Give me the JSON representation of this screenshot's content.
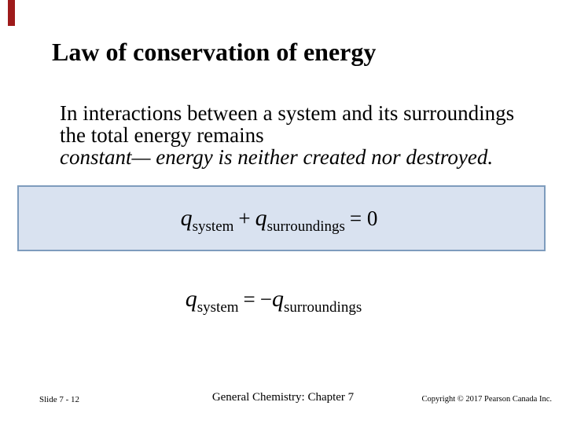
{
  "slide": {
    "title": "Law of conservation of energy",
    "paragraph": {
      "line1": "In interactions between a system and its surroundings",
      "line2": "the total energy remains",
      "line3": "constant— energy is neither created nor destroyed."
    },
    "equation_box": {
      "q1": "q",
      "sub1": "system",
      "plus": "+",
      "q2": "q",
      "sub2": "surroundings",
      "result": "= 0"
    },
    "equation_2": {
      "q1": "q",
      "sub1": "system",
      "equals": "=",
      "minus": "−",
      "q2": "q",
      "sub2": "surroundings"
    },
    "footer": {
      "slide_number": "Slide 7 - 12",
      "center": "General Chemistry: Chapter 7",
      "copyright": "Copyright © 2017 Pearson Canada Inc."
    },
    "colors": {
      "accent_bar": "#9e1b1b",
      "box_fill": "#d9e2f0",
      "box_border": "#7e9cbd",
      "text": "#000000"
    }
  }
}
